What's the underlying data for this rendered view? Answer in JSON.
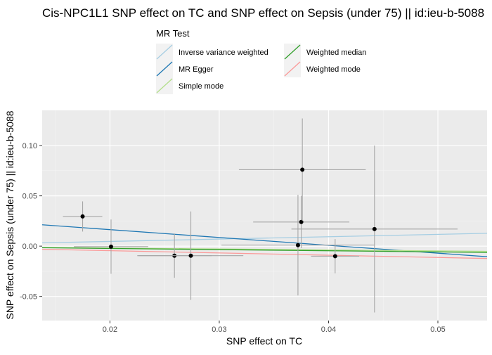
{
  "chart_data": {
    "type": "scatter",
    "title": "Cis-NPC1L1 SNP effect on TC and SNP effect on Sepsis (under 75) || id:ieu-b-5088",
    "xlabel": "SNP effect on TC",
    "ylabel": "SNP effect on Sepsis (under 75) || id:ieu-b-5088",
    "xlim": [
      0.0138,
      0.0545
    ],
    "ylim": [
      -0.074,
      0.135
    ],
    "xticks": [
      0.02,
      0.03,
      0.04,
      0.05
    ],
    "xtick_labels": [
      "0.02",
      "0.03",
      "0.04",
      "0.05"
    ],
    "yticks": [
      -0.05,
      0.0,
      0.05,
      0.1
    ],
    "ytick_labels": [
      "-0.05",
      "0.00",
      "0.05",
      "0.10"
    ],
    "grid": true,
    "legend_placement": "top",
    "legend_title": "MR Test",
    "points": [
      {
        "x": 0.0175,
        "y": 0.0295,
        "xerr": 0.0018,
        "yerr": 0.015
      },
      {
        "x": 0.0201,
        "y": -0.0005,
        "xerr": 0.0034,
        "yerr": 0.027
      },
      {
        "x": 0.0259,
        "y": -0.0095,
        "xerr": 0.0034,
        "yerr": 0.022
      },
      {
        "x": 0.0274,
        "y": -0.0095,
        "xerr": 0.0048,
        "yerr": 0.044
      },
      {
        "x": 0.0372,
        "y": 0.001,
        "xerr": 0.007,
        "yerr": 0.05
      },
      {
        "x": 0.0375,
        "y": 0.024,
        "xerr": 0.0044,
        "yerr": 0.026
      },
      {
        "x": 0.0376,
        "y": 0.076,
        "xerr": 0.0058,
        "yerr": 0.051
      },
      {
        "x": 0.0406,
        "y": -0.01,
        "xerr": 0.0022,
        "yerr": 0.017
      },
      {
        "x": 0.0442,
        "y": 0.017,
        "xerr": 0.0076,
        "yerr": 0.083
      }
    ],
    "series": [
      {
        "name": "Inverse variance weighted",
        "color": "#a6cee3",
        "slope": 0.234,
        "intercept": 0.0
      },
      {
        "name": "MR Egger",
        "color": "#1f78b4",
        "slope": -0.78,
        "intercept": 0.032
      },
      {
        "name": "Simple mode",
        "color": "#b2df8a",
        "slope": -0.095,
        "intercept": 0.0
      },
      {
        "name": "Weighted median",
        "color": "#33a02c",
        "slope": -0.115,
        "intercept": 0.0
      },
      {
        "name": "Weighted mode",
        "color": "#fb9a99",
        "slope": -0.225,
        "intercept": 0.0
      }
    ]
  }
}
